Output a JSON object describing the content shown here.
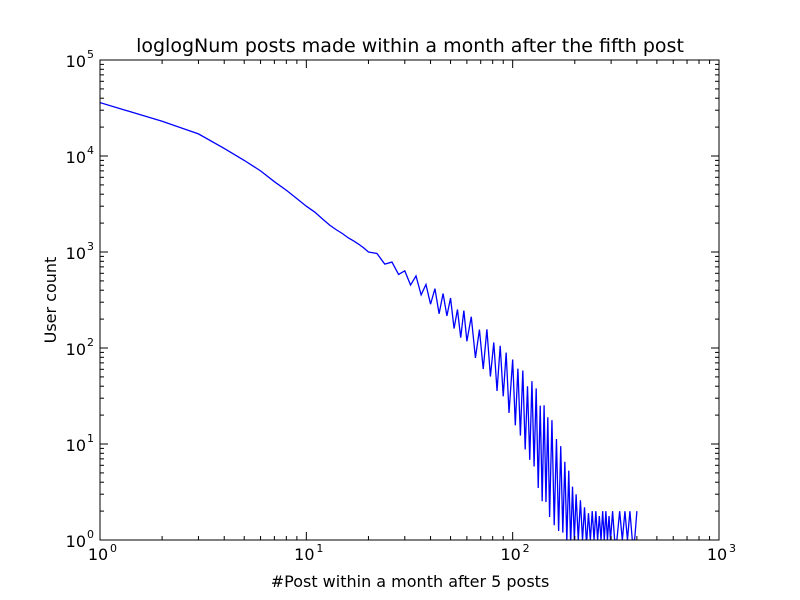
{
  "chart_data": {
    "type": "line",
    "title": "loglogNum posts made within a month after the fifth post",
    "xlabel": "#Post within a month after 5 posts",
    "ylabel": "User count",
    "xscale": "log",
    "yscale": "log",
    "xlim": [
      1,
      1000
    ],
    "ylim": [
      1,
      100000
    ],
    "grid": false,
    "x_ticks": [
      {
        "base": "10",
        "exp": "0",
        "value": 1
      },
      {
        "base": "10",
        "exp": "1",
        "value": 10
      },
      {
        "base": "10",
        "exp": "2",
        "value": 100
      },
      {
        "base": "10",
        "exp": "3",
        "value": 1000
      }
    ],
    "y_ticks": [
      {
        "base": "10",
        "exp": "0",
        "value": 1
      },
      {
        "base": "10",
        "exp": "1",
        "value": 10
      },
      {
        "base": "10",
        "exp": "2",
        "value": 100
      },
      {
        "base": "10",
        "exp": "3",
        "value": 1000
      },
      {
        "base": "10",
        "exp": "4",
        "value": 10000
      },
      {
        "base": "10",
        "exp": "5",
        "value": 100000
      }
    ],
    "series": [
      {
        "color": "#0000ff",
        "x": [
          1,
          2,
          3,
          4,
          5,
          6,
          7,
          8,
          9,
          10,
          11,
          12,
          13,
          14,
          15,
          16,
          17,
          18,
          19,
          20,
          22,
          24,
          26,
          28,
          30,
          32,
          34,
          36,
          38,
          40,
          42,
          44,
          46,
          48,
          50,
          52,
          54,
          56,
          58,
          60,
          63,
          66,
          69,
          72,
          75,
          78,
          81,
          84,
          87,
          90,
          93,
          96,
          100,
          103,
          106,
          109,
          112,
          115,
          118,
          121,
          124,
          127,
          130,
          133,
          136,
          139,
          142,
          145,
          148,
          151,
          155,
          159,
          163,
          167,
          171,
          175,
          179,
          183,
          187,
          191,
          195,
          199,
          203,
          208,
          213,
          218,
          223,
          228,
          233,
          238,
          243,
          248,
          253,
          258,
          263,
          268,
          273,
          278,
          283,
          288,
          293,
          298,
          305,
          312,
          320,
          330,
          340,
          350,
          360,
          370,
          380,
          390,
          400
        ],
        "y": [
          36000,
          23000,
          17000,
          12000,
          9000,
          7000,
          5400,
          4400,
          3600,
          3000,
          2600,
          2200,
          1900,
          1700,
          1550,
          1400,
          1300,
          1200,
          1100,
          1000,
          900,
          800,
          700,
          640,
          580,
          520,
          480,
          430,
          400,
          360,
          330,
          300,
          280,
          260,
          240,
          220,
          200,
          185,
          170,
          155,
          140,
          125,
          110,
          100,
          90,
          80,
          72,
          65,
          58,
          52,
          47,
          42,
          38,
          35,
          32,
          28,
          26,
          22,
          20,
          18,
          16,
          14,
          12,
          11,
          10,
          9,
          8,
          7,
          6,
          5.5,
          5,
          4.5,
          4,
          3.5,
          3,
          3,
          2.6,
          2.4,
          2.2,
          2,
          1.8,
          1.6,
          1.5,
          1.4,
          1.3,
          1.2,
          1.1,
          1,
          1,
          1,
          1,
          1,
          1,
          1,
          1,
          1,
          1,
          1,
          1,
          1,
          1,
          1,
          1,
          1,
          1,
          1,
          1,
          1,
          1,
          1,
          1,
          1,
          1
        ],
        "y_noise": [
          0,
          0,
          0,
          0,
          0,
          0,
          0,
          0,
          0,
          0,
          0,
          0,
          0,
          0,
          0,
          0,
          0,
          0,
          0,
          0,
          0.03,
          -0.03,
          0.05,
          -0.04,
          0.04,
          -0.06,
          0.07,
          -0.08,
          0.06,
          -0.1,
          0.1,
          -0.12,
          0.12,
          -0.08,
          0.14,
          -0.14,
          0.1,
          -0.16,
          0.16,
          -0.12,
          0.18,
          -0.2,
          0.15,
          -0.22,
          0.24,
          -0.2,
          0.2,
          -0.26,
          0.26,
          -0.22,
          0.28,
          -0.3,
          0.3,
          -0.35,
          0.28,
          -0.36,
          0.35,
          -0.4,
          0.3,
          -0.42,
          0.45,
          -0.38,
          0.5,
          -0.5,
          0.4,
          -0.55,
          0.5,
          -0.45,
          0.5,
          -0.5,
          0.55,
          -0.5,
          0.45,
          -0.45,
          0.5,
          -0.4,
          0.4,
          -0.4,
          0.38,
          -0.35,
          0.3,
          -0.2,
          0.3,
          -0.15,
          0.3,
          -0.08,
          0.3,
          -0.05,
          0.28,
          0,
          0.3,
          0,
          0.3,
          0,
          0.25,
          0,
          0.3,
          0,
          0.3,
          0,
          0.25,
          0,
          0.3,
          0,
          0,
          0.3,
          0,
          0.3,
          0,
          0.3,
          0,
          0,
          0.3
        ]
      }
    ],
    "legend": null
  }
}
